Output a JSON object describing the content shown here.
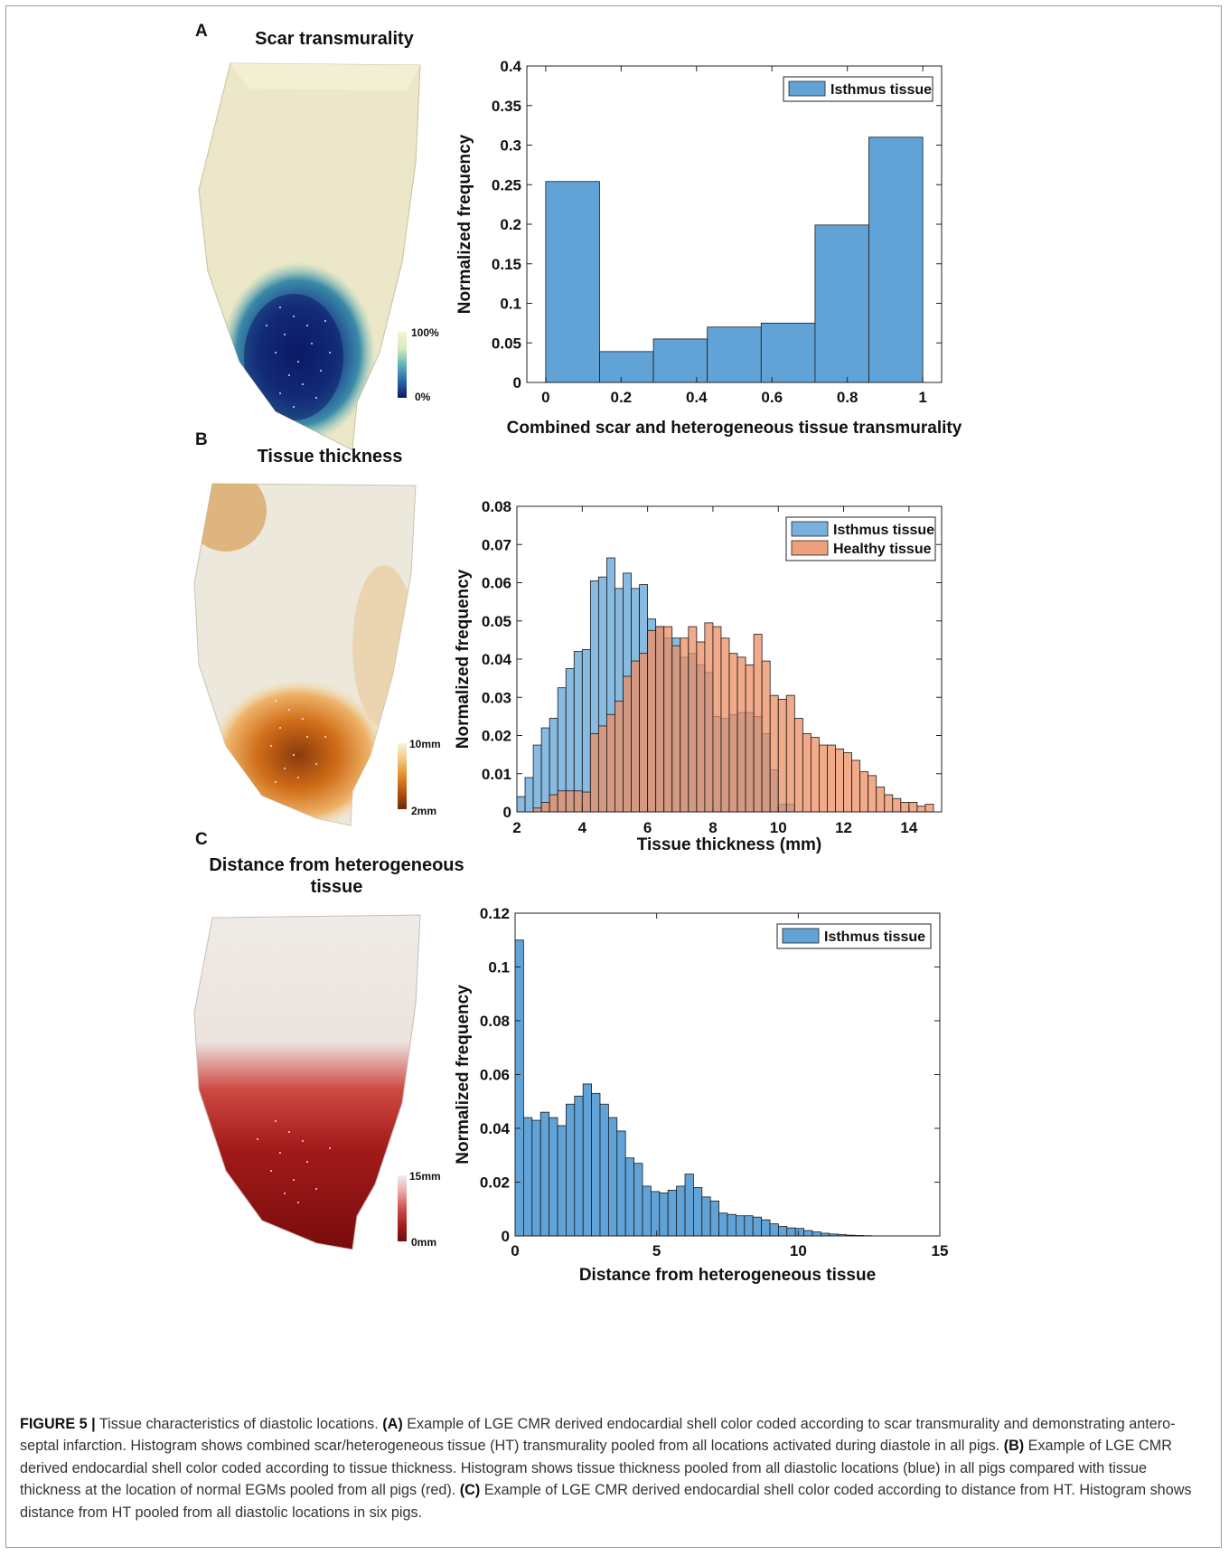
{
  "panels": [
    {
      "letter": "A",
      "shell_title": "Scar transmurality",
      "colorbar": {
        "max_label": "100%",
        "min_label": "0%",
        "colors": [
          "#0b1a66",
          "#2a66a8",
          "#5fb3b8",
          "#d4ecc2",
          "#f6f4c8"
        ]
      },
      "chart_data": {
        "type": "bar",
        "xlabel": "Combined scar and heterogeneous tissue transmurality",
        "ylabel": "Normalized frequency",
        "xlim": [
          -0.05,
          1.05
        ],
        "ylim": [
          0,
          0.4
        ],
        "xticks": [
          "0",
          "0.2",
          "0.4",
          "0.6",
          "0.8",
          "1"
        ],
        "yticks": [
          "0",
          "0.05",
          "0.1",
          "0.15",
          "0.2",
          "0.25",
          "0.3",
          "0.35",
          "0.4"
        ],
        "bin_edges": [
          0,
          0.1429,
          0.2857,
          0.4286,
          0.5714,
          0.7143,
          0.8571,
          1.0
        ],
        "series": [
          {
            "name": "Isthmus tissue",
            "color": "#61a3d6",
            "values": [
              0.254,
              0.039,
              0.055,
              0.07,
              0.075,
              0.199,
              0.31
            ]
          }
        ],
        "legend": "top-right"
      }
    },
    {
      "letter": "B",
      "shell_title": "Tissue thickness",
      "colorbar": {
        "max_label": "10mm",
        "min_label": "2mm",
        "colors": [
          "#6b2a08",
          "#b5520f",
          "#e08a2a",
          "#f2c77e",
          "#fbf2dc"
        ]
      },
      "chart_data": {
        "type": "bar",
        "xlabel": "Tissue thickness (mm)",
        "ylabel": "Normalized frequency",
        "xlim": [
          2,
          15
        ],
        "ylim": [
          0,
          0.08
        ],
        "xticks": [
          "2",
          "4",
          "6",
          "8",
          "10",
          "12",
          "14"
        ],
        "yticks": [
          "0",
          "0.01",
          "0.02",
          "0.03",
          "0.04",
          "0.05",
          "0.06",
          "0.07",
          "0.08"
        ],
        "bin_start": 2.0,
        "bin_width": 0.25,
        "series": [
          {
            "name": "Isthmus tissue",
            "color": "#61a3d6",
            "values": [
              0.004,
              0.009,
              0.0175,
              0.022,
              0.0245,
              0.0325,
              0.0375,
              0.042,
              0.0425,
              0.0605,
              0.0615,
              0.0665,
              0.0585,
              0.0625,
              0.0585,
              0.0595,
              0.0505,
              0.0485,
              0.0455,
              0.0455,
              0.0405,
              0.0415,
              0.0385,
              0.0365,
              0.025,
              0.0245,
              0.0255,
              0.026,
              0.026,
              0.025,
              0.0205,
              0.011,
              0.002,
              0.002,
              0,
              0,
              0,
              0,
              0,
              0,
              0,
              0,
              0,
              0,
              0,
              0,
              0,
              0,
              0,
              0,
              0,
              0
            ]
          },
          {
            "name": "Healthy tissue",
            "color": "#ec8e63",
            "values": [
              0,
              0,
              0.001,
              0.0025,
              0.0045,
              0.0055,
              0.0055,
              0.0055,
              0.0052,
              0.0205,
              0.0225,
              0.0255,
              0.029,
              0.0355,
              0.0395,
              0.0415,
              0.0475,
              0.0485,
              0.0485,
              0.0435,
              0.0455,
              0.0485,
              0.0445,
              0.0495,
              0.0485,
              0.0455,
              0.0415,
              0.0405,
              0.0385,
              0.0465,
              0.0395,
              0.0305,
              0.0295,
              0.0305,
              0.0245,
              0.0205,
              0.0195,
              0.0175,
              0.0175,
              0.0165,
              0.0155,
              0.0135,
              0.0105,
              0.0095,
              0.0065,
              0.0045,
              0.0035,
              0.0025,
              0.0025,
              0.0015,
              0.002,
              0
            ]
          }
        ],
        "legend": "top-right"
      }
    },
    {
      "letter": "C",
      "shell_title": "Distance from heterogeneous tissue",
      "colorbar": {
        "max_label": "15mm",
        "min_label": "0mm",
        "colors": [
          "#6a0e0e",
          "#a81d1d",
          "#d05050",
          "#e9a8a8",
          "#f6ecec"
        ]
      },
      "chart_data": {
        "type": "bar",
        "xlabel": "Distance from heterogeneous tissue",
        "ylabel": "Normalized frequency",
        "xlim": [
          0,
          15
        ],
        "ylim": [
          0,
          0.12
        ],
        "xticks": [
          "0",
          "5",
          "10",
          "15"
        ],
        "yticks": [
          "0",
          "0.02",
          "0.04",
          "0.06",
          "0.08",
          "0.1",
          "0.12"
        ],
        "bin_start": 0.0,
        "bin_width": 0.3,
        "series": [
          {
            "name": "Isthmus tissue",
            "color": "#61a3d6",
            "values": [
              0.11,
              0.044,
              0.043,
              0.046,
              0.044,
              0.041,
              0.049,
              0.052,
              0.0565,
              0.053,
              0.049,
              0.044,
              0.039,
              0.029,
              0.027,
              0.0185,
              0.0165,
              0.016,
              0.017,
              0.0185,
              0.023,
              0.018,
              0.0145,
              0.013,
              0.0085,
              0.008,
              0.0075,
              0.0075,
              0.007,
              0.006,
              0.0045,
              0.0035,
              0.003,
              0.0028,
              0.002,
              0.0015,
              0.001,
              0.0007,
              0.0005,
              0.0003,
              0.0002,
              0.0001,
              0,
              0,
              0,
              0,
              0,
              0,
              0,
              0
            ]
          }
        ],
        "legend": "top-right"
      }
    }
  ],
  "caption": {
    "lead": "FIGURE 5 |",
    "intro": " Tissue characteristics of diastolic locations. ",
    "a_label": "(A)",
    "a_text": " Example of LGE CMR derived endocardial shell color coded according to scar transmurality and demonstrating antero-septal infarction. Histogram shows combined scar/heterogeneous tissue (HT) transmurality pooled from all locations activated during diastole in all pigs. ",
    "b_label": "(B)",
    "b_text": " Example of LGE CMR derived endocardial shell color coded according to tissue thickness. Histogram shows tissue thickness pooled from all diastolic locations (blue) in all pigs compared with tissue thickness at the location of normal EGMs pooled from all pigs (red). ",
    "c_label": "(C)",
    "c_text": " Example of LGE CMR derived endocardial shell color coded according to distance from HT. Histogram shows distance from HT pooled from all diastolic locations in six pigs."
  }
}
